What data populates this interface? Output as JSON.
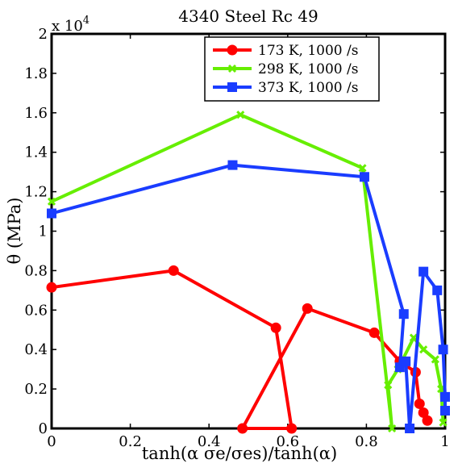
{
  "chart_data": {
    "type": "line",
    "title": "4340 Steel Rc 49",
    "xlabel": "tanh(α σe/σes)/tanh(α)",
    "ylabel": "θ (MPa)",
    "y_exponent_label": "x 10",
    "y_exponent_power": "4",
    "xlim": [
      0,
      1
    ],
    "ylim": [
      0,
      2
    ],
    "xticks": [
      "0",
      "0.2",
      "0.4",
      "0.6",
      "0.8",
      "1"
    ],
    "yticks": [
      "0",
      "0.2",
      "0.4",
      "0.6",
      "0.8",
      "1",
      "1.2",
      "1.4",
      "1.6",
      "1.8",
      "2"
    ],
    "grid": false,
    "legend_position": "top-right",
    "series": [
      {
        "name": "173 K, 1000 /s",
        "color": "#ff0000",
        "marker": "circle",
        "points": [
          [
            0,
            0.715
          ],
          [
            0.31,
            0.8
          ],
          [
            0.57,
            0.51
          ],
          [
            0.61,
            0.0
          ],
          [
            0.485,
            0.0
          ],
          [
            0.65,
            0.608
          ],
          [
            0.82,
            0.485
          ],
          [
            0.885,
            0.34
          ],
          [
            0.925,
            0.285
          ],
          [
            0.935,
            0.125
          ],
          [
            0.945,
            0.08
          ],
          [
            0.955,
            0.04
          ]
        ]
      },
      {
        "name": "298 K, 1000 /s",
        "color": "#66ee00",
        "marker": "x",
        "points": [
          [
            0,
            1.15
          ],
          [
            0.48,
            1.59
          ],
          [
            0.79,
            1.32
          ],
          [
            0.865,
            0.0
          ],
          [
            0.855,
            0.22
          ],
          [
            0.88,
            0.3
          ],
          [
            0.92,
            0.46
          ],
          [
            0.945,
            0.4
          ],
          [
            0.975,
            0.35
          ],
          [
            0.99,
            0.2
          ],
          [
            0.995,
            0.03
          ]
        ]
      },
      {
        "name": "373 K, 1000 /s",
        "color": "#1a3cff",
        "marker": "square",
        "points": [
          [
            0,
            1.09
          ],
          [
            0.46,
            1.335
          ],
          [
            0.795,
            1.275
          ],
          [
            0.895,
            0.58
          ],
          [
            0.885,
            0.31
          ],
          [
            0.9,
            0.34
          ],
          [
            0.91,
            0.0
          ],
          [
            0.945,
            0.795
          ],
          [
            0.98,
            0.7
          ],
          [
            0.995,
            0.4
          ],
          [
            1.0,
            0.16
          ],
          [
            1.0,
            0.09
          ]
        ]
      }
    ]
  }
}
